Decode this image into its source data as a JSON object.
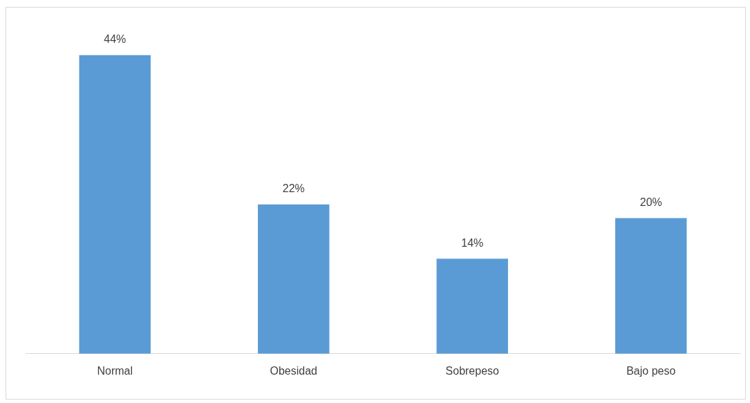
{
  "chart_data": {
    "type": "bar",
    "categories": [
      "Normal",
      "Obesidad",
      "Sobrepeso",
      "Bajo peso"
    ],
    "values": [
      44,
      22,
      14,
      20
    ],
    "value_labels": [
      "44%",
      "22%",
      "14%",
      "20%"
    ],
    "color": "#5b9bd5",
    "tick_labels": "x",
    "grid": false,
    "legend": false
  }
}
